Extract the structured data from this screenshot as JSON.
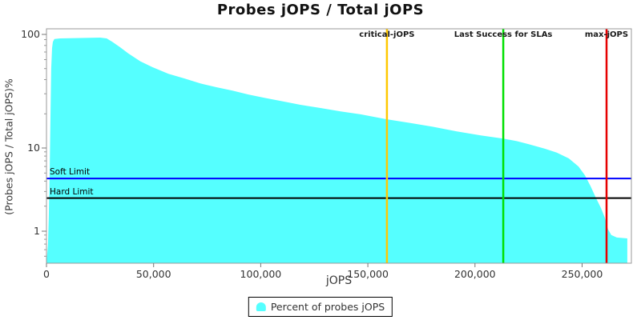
{
  "title": "Probes jOPS / Total jOPS",
  "chart_data": {
    "type": "area",
    "title": "Probes jOPS / Total jOPS",
    "xlabel": "jOPS",
    "ylabel": "(Probes jOPS / Total jOPS)%",
    "y_scale": "log",
    "xlim": [
      0,
      273000
    ],
    "ylim": [
      0.41,
      115
    ],
    "grid": false,
    "x_ticks": [
      0,
      50000,
      100000,
      150000,
      200000,
      250000
    ],
    "x_tick_labels": [
      "0",
      "50,000",
      "100,000",
      "150,000",
      "200,000",
      "250,000"
    ],
    "y_ticks": [
      100,
      10,
      1
    ],
    "y_tick_labels": [
      "100",
      "10",
      "1"
    ],
    "series": [
      {
        "name": "Percent of probes jOPS",
        "color": "#55FFFF",
        "points": [
          [
            0,
            0.41
          ],
          [
            700,
            0.7
          ],
          [
            1100,
            1.5
          ],
          [
            1500,
            5.2
          ],
          [
            1900,
            21
          ],
          [
            2200,
            50
          ],
          [
            2600,
            76
          ],
          [
            3000,
            86
          ],
          [
            3700,
            91
          ],
          [
            6400,
            92.2
          ],
          [
            15700,
            92.9
          ],
          [
            25100,
            93.7
          ],
          [
            28100,
            92.2
          ],
          [
            30700,
            86
          ],
          [
            34400,
            77
          ],
          [
            38200,
            68
          ],
          [
            43800,
            58
          ],
          [
            49400,
            51.5
          ],
          [
            56900,
            45
          ],
          [
            64300,
            41
          ],
          [
            71800,
            37
          ],
          [
            79300,
            34.3
          ],
          [
            86800,
            32
          ],
          [
            94200,
            29.6
          ],
          [
            101700,
            27.7
          ],
          [
            109200,
            26
          ],
          [
            118500,
            24
          ],
          [
            127900,
            22.5
          ],
          [
            137300,
            21
          ],
          [
            146600,
            19.8
          ],
          [
            158900,
            17.9
          ],
          [
            169000,
            16.7
          ],
          [
            180200,
            15.4
          ],
          [
            191500,
            14
          ],
          [
            202700,
            12.9
          ],
          [
            213200,
            12.1
          ],
          [
            219500,
            11.5
          ],
          [
            225100,
            10.8
          ],
          [
            232600,
            9.8
          ],
          [
            238200,
            8.8
          ],
          [
            243800,
            7.5
          ],
          [
            248300,
            6.0
          ],
          [
            251300,
            4.7
          ],
          [
            253900,
            3.5
          ],
          [
            256500,
            2.5
          ],
          [
            258800,
            1.9
          ],
          [
            260600,
            1.46
          ],
          [
            262100,
            1.05
          ],
          [
            263600,
            0.9
          ],
          [
            266200,
            0.84
          ],
          [
            271100,
            0.82
          ]
        ]
      }
    ],
    "vlines": [
      {
        "label": "critical-jOPS",
        "x": 158900,
        "color": "#FFC800"
      },
      {
        "label": "Last Success for SLAs",
        "x": 213200,
        "color": "#00E000"
      },
      {
        "label": "max-jOPS",
        "x": 261400,
        "color": "#E60000"
      }
    ],
    "hlines": [
      {
        "label": "Soft Limit",
        "y": 4.3,
        "color": "#0000FF"
      },
      {
        "label": "Hard Limit",
        "y": 2.5,
        "color": "#000000"
      }
    ],
    "legend": {
      "position": "bottom",
      "entries": [
        "Percent of probes jOPS"
      ]
    }
  }
}
